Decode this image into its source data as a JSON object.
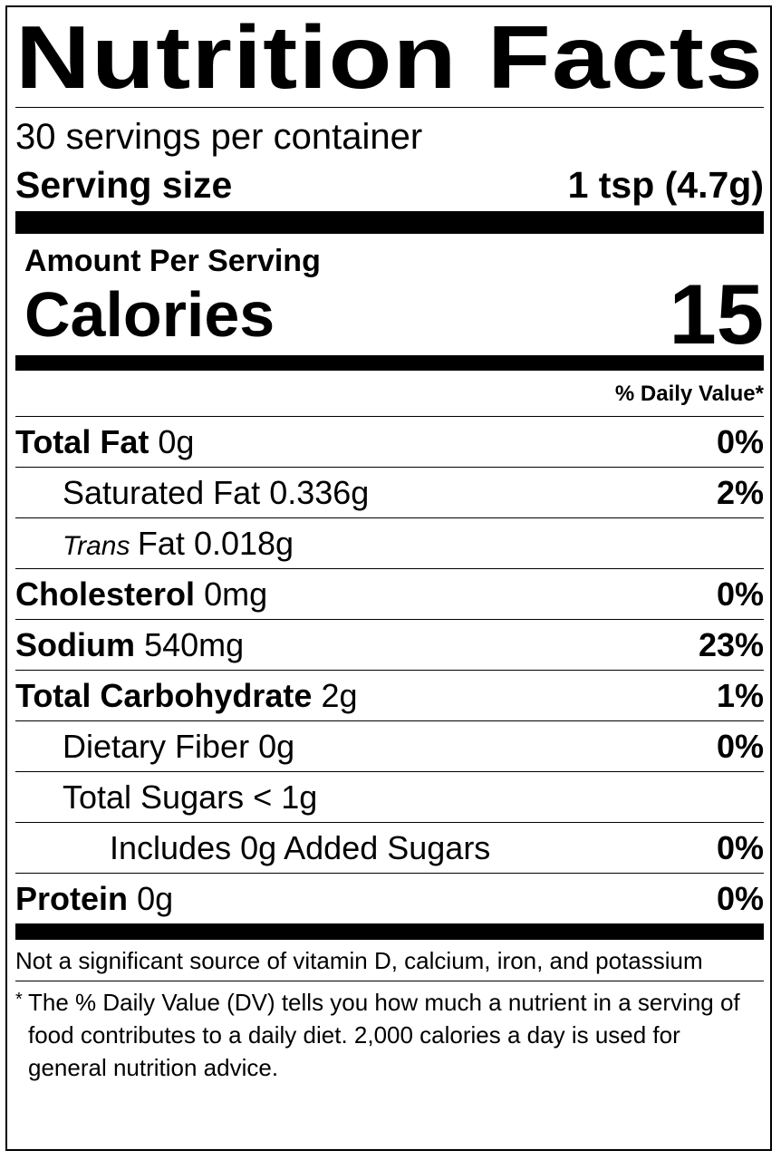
{
  "title": "Nutrition Facts",
  "servings": "30 servings per container",
  "serving_size": {
    "label": "Serving size",
    "value": "1 tsp (4.7g)"
  },
  "amount_per_serving": "Amount Per Serving",
  "calories": {
    "label": "Calories",
    "value": "15"
  },
  "daily_value_header": "% Daily Value*",
  "rows": [
    {
      "name": "Total Fat",
      "amount": "0g",
      "dv": "0%"
    },
    {
      "name": "Saturated Fat",
      "amount": "0.336g",
      "dv": "2%"
    },
    {
      "name_italic": "Trans",
      "name": "Fat",
      "amount": "0.018g"
    },
    {
      "name": "Cholesterol",
      "amount": "0mg",
      "dv": "0%"
    },
    {
      "name": "Sodium",
      "amount": "540mg",
      "dv": "23%"
    },
    {
      "name": "Total Carbohydrate",
      "amount": "2g",
      "dv": "1%"
    },
    {
      "name": "Dietary Fiber",
      "amount": "0g",
      "dv": "0%"
    },
    {
      "name": "Total Sugars",
      "amount": "< 1g"
    },
    {
      "name": "Includes 0g Added Sugars",
      "dv": "0%"
    },
    {
      "name": "Protein",
      "amount": "0g",
      "dv": "0%"
    }
  ],
  "note": "Not a significant source of vitamin D, calcium, iron, and potassium",
  "footnote": {
    "mark": "*",
    "text": "The % Daily Value (DV) tells you how much a nutrient in a serving of food contributes to a daily diet. 2,000 calories a day is used for general nutrition advice."
  }
}
